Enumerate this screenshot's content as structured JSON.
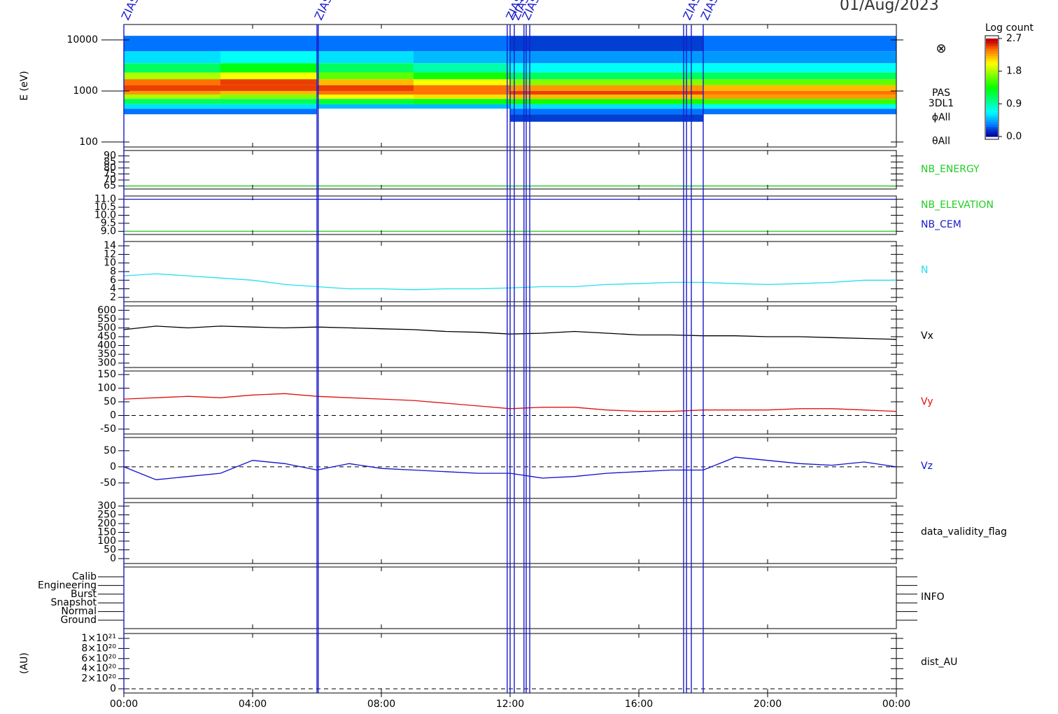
{
  "date": "01/Aug/2023",
  "time_axis": {
    "xlim": [
      0,
      24
    ],
    "xticks": [
      {
        "value": 0,
        "label": "00:00"
      },
      {
        "value": 4,
        "label": "04:00"
      },
      {
        "value": 8,
        "label": "08:00"
      },
      {
        "value": 12,
        "label": "12:00"
      },
      {
        "value": 16,
        "label": "16:00"
      },
      {
        "value": 20,
        "label": "20:00"
      },
      {
        "value": 24,
        "label": "00:00"
      }
    ]
  },
  "events": {
    "label": "ZIAS",
    "color": "#1a1acc",
    "times": [
      0.0,
      6.0,
      6.04,
      11.91,
      12.0,
      12.13,
      12.43,
      12.5,
      12.61,
      17.39,
      17.48,
      17.63,
      18.0
    ],
    "labeled_times": [
      0.0,
      6.0,
      11.95,
      12.13,
      12.45,
      17.45,
      18.0
    ]
  },
  "colorbar": {
    "title": "Log count",
    "clim": [
      0,
      2.7
    ],
    "ticks": [
      2.7,
      1.8,
      0.9,
      {
        "value": 0,
        "label": "0.0"
      }
    ]
  },
  "chart_data": [
    {
      "type": "heatmap",
      "ylabel": "E (eV)",
      "log_y": true,
      "ylim": [
        80,
        20000
      ],
      "yticks": [
        100,
        1000,
        10000
      ],
      "marker": "⊗",
      "labels": [
        "PAS",
        "3DL1",
        "ϕAll",
        "θAll"
      ],
      "x_edges": [
        0,
        3,
        6,
        9,
        12,
        15,
        18,
        21,
        24
      ],
      "y_edges": [
        250,
        350,
        450,
        550,
        700,
        850,
        1000,
        1300,
        1700,
        2300,
        3500,
        6000,
        12000
      ],
      "z": [
        [
          null,
          0.3,
          0.6,
          1.1,
          1.8,
          2.3,
          2.5,
          2.4,
          1.8,
          1.1,
          0.6,
          0.3
        ],
        [
          null,
          0.3,
          0.6,
          1.1,
          1.7,
          2.2,
          2.5,
          2.5,
          2.0,
          1.3,
          0.7,
          0.3
        ],
        [
          null,
          null,
          0.5,
          1.2,
          2.0,
          2.4,
          2.5,
          2.2,
          1.6,
          1.1,
          0.6,
          0.3
        ],
        [
          null,
          null,
          0.5,
          1.3,
          2.1,
          2.4,
          2.4,
          2.0,
          1.4,
          0.9,
          0.5,
          0.3
        ],
        [
          0.2,
          0.3,
          0.6,
          1.4,
          2.2,
          2.5,
          2.3,
          1.7,
          1.1,
          0.7,
          0.4,
          0.2
        ],
        [
          0.2,
          0.3,
          0.6,
          1.4,
          2.2,
          2.5,
          2.3,
          1.7,
          1.1,
          0.7,
          0.4,
          0.2
        ],
        [
          null,
          0.3,
          0.7,
          1.5,
          2.3,
          2.4,
          2.2,
          1.6,
          1.1,
          0.7,
          0.4,
          0.3
        ],
        [
          null,
          0.3,
          0.7,
          1.5,
          2.3,
          2.4,
          2.2,
          1.6,
          1.1,
          0.7,
          0.4,
          0.3
        ]
      ]
    },
    {
      "type": "line",
      "ylim": [
        62.5,
        94.5
      ],
      "yticks": [
        65,
        70,
        75,
        80,
        85,
        90
      ],
      "x": [
        0,
        24
      ],
      "series": [
        {
          "name": "NB_ENERGY",
          "color": "#22cc22",
          "values": [
            65,
            65
          ]
        }
      ]
    },
    {
      "type": "line",
      "ylim": [
        8.8,
        11.2
      ],
      "yticks": [
        {
          "value": 9,
          "label": "9.0"
        },
        9.5,
        {
          "value": 10,
          "label": "10.0"
        },
        10.5,
        {
          "value": 11,
          "label": "11.0"
        }
      ],
      "x": [
        0,
        24
      ],
      "series": [
        {
          "name": "NB_ELEVATION",
          "color": "#22cc22",
          "values": [
            9,
            9
          ]
        },
        {
          "name": "NB_CEM",
          "color": "#1a1acc",
          "values": [
            11,
            11
          ]
        }
      ]
    },
    {
      "type": "line",
      "ylim": [
        1,
        15
      ],
      "yticks": [
        2,
        4,
        6,
        8,
        10,
        12,
        14
      ],
      "x": [
        0,
        1,
        2,
        3,
        4,
        5,
        6,
        7,
        8,
        9,
        10,
        11,
        12,
        13,
        14,
        15,
        16,
        17,
        18,
        19,
        20,
        21,
        22,
        23,
        24
      ],
      "series": [
        {
          "name": "N",
          "color": "#22e0ee",
          "values": [
            7,
            7.5,
            7,
            6.5,
            6,
            5,
            4.5,
            4,
            4,
            3.8,
            4,
            4,
            4.2,
            4.5,
            4.5,
            5,
            5.2,
            5.5,
            5.5,
            5.2,
            5,
            5.2,
            5.5,
            6,
            6
          ]
        }
      ]
    },
    {
      "type": "line",
      "ylim": [
        275,
        625
      ],
      "yticks": [
        300,
        350,
        400,
        450,
        500,
        550,
        600
      ],
      "x": [
        0,
        1,
        2,
        3,
        4,
        5,
        6,
        7,
        8,
        9,
        10,
        11,
        12,
        13,
        14,
        15,
        16,
        17,
        18,
        19,
        20,
        21,
        22,
        23,
        24
      ],
      "series": [
        {
          "name": "Vx",
          "color": "#000000",
          "values": [
            490,
            510,
            500,
            510,
            505,
            500,
            505,
            500,
            495,
            490,
            480,
            475,
            465,
            470,
            480,
            470,
            460,
            460,
            455,
            455,
            450,
            450,
            445,
            440,
            435
          ]
        }
      ]
    },
    {
      "type": "line",
      "ylim": [
        -68,
        163
      ],
      "yticks": [
        -50,
        0,
        50,
        100,
        150
      ],
      "zero_line": true,
      "x": [
        0,
        1,
        2,
        3,
        4,
        5,
        6,
        7,
        8,
        9,
        10,
        11,
        12,
        13,
        14,
        15,
        16,
        17,
        18,
        19,
        20,
        21,
        22,
        23,
        24
      ],
      "series": [
        {
          "name": "Vy",
          "color": "#e01010",
          "values": [
            60,
            65,
            70,
            65,
            75,
            80,
            70,
            65,
            60,
            55,
            45,
            35,
            25,
            30,
            30,
            20,
            15,
            15,
            20,
            20,
            20,
            25,
            25,
            20,
            15
          ]
        }
      ]
    },
    {
      "type": "line",
      "ylim": [
        -98,
        91
      ],
      "yticks": [
        -50,
        0,
        50
      ],
      "zero_line": true,
      "x": [
        0,
        1,
        2,
        3,
        4,
        5,
        6,
        7,
        8,
        9,
        10,
        11,
        12,
        13,
        14,
        15,
        16,
        17,
        18,
        19,
        20,
        21,
        22,
        23,
        24
      ],
      "series": [
        {
          "name": "Vz",
          "color": "#1010cc",
          "values": [
            0,
            -40,
            -30,
            -20,
            20,
            10,
            -10,
            10,
            -5,
            -10,
            -15,
            -20,
            -20,
            -35,
            -30,
            -20,
            -15,
            -10,
            -10,
            30,
            20,
            10,
            5,
            15,
            0
          ]
        }
      ]
    },
    {
      "type": "line",
      "name": "data_validity_flag",
      "ylim": [
        -28,
        320
      ],
      "yticks": [
        0,
        50,
        100,
        150,
        200,
        250,
        300
      ],
      "x": [],
      "series": []
    },
    {
      "type": "categorical",
      "name": "INFO",
      "categories": [
        "Calib",
        "Engineering",
        "Burst",
        "Snapshot",
        "Normal",
        "Ground"
      ]
    },
    {
      "type": "line",
      "name": "dist_AU",
      "ylabel": "(AU)",
      "ylim": [
        -8.3e+19,
        1.097e+21
      ],
      "yticks": [
        0,
        {
          "value": 2e+20,
          "label": "2×10²⁰"
        },
        {
          "value": 4e+20,
          "label": "4×10²⁰"
        },
        {
          "value": 6e+20,
          "label": "6×10²⁰"
        },
        {
          "value": 8e+20,
          "label": "8×10²⁰"
        },
        {
          "value": 1e+21,
          "label": "1×10²¹"
        }
      ],
      "zero_line": true,
      "x": [],
      "series": []
    }
  ]
}
